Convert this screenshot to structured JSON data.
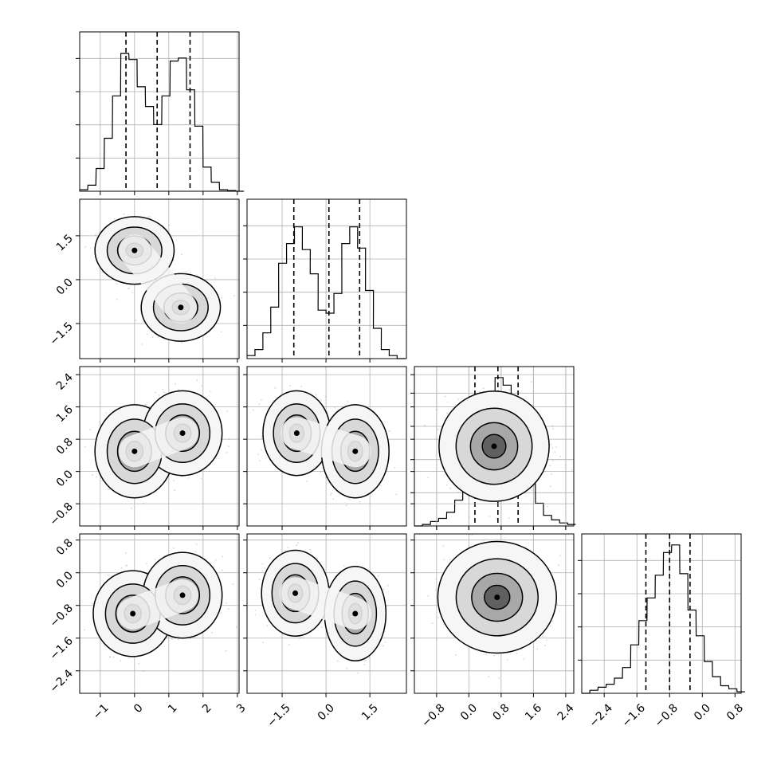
{
  "chart_data": {
    "type": "corner",
    "title": "",
    "n_params": 4,
    "grid": true,
    "colors": {
      "hist": "#000000",
      "contour": "#000000",
      "grid": "#b0b0b0",
      "points": "#8a8a8a"
    },
    "quantile_levels": [
      0.16,
      0.5,
      0.84
    ],
    "params": [
      {
        "ticks": [
          -1,
          0,
          1,
          2,
          3
        ],
        "tick_labels": [
          "−1",
          "0",
          "1",
          "2",
          "3"
        ],
        "range": [
          -1.6,
          3.05
        ],
        "quantiles": [
          -0.25,
          0.66,
          1.62
        ],
        "hist_bins": [
          -1.6,
          -1.36,
          -1.12,
          -0.88,
          -0.64,
          -0.4,
          -0.16,
          0.08,
          0.32,
          0.56,
          0.8,
          1.04,
          1.28,
          1.52,
          1.76,
          2.0,
          2.24,
          2.48,
          2.72,
          2.96
        ],
        "hist_counts": [
          0.01,
          0.04,
          0.15,
          0.35,
          0.63,
          0.91,
          0.87,
          0.69,
          0.56,
          0.44,
          0.63,
          0.86,
          0.88,
          0.67,
          0.43,
          0.16,
          0.06,
          0.01,
          0.005,
          0.0
        ]
      },
      {
        "ticks": [
          -1.5,
          0.0,
          1.5
        ],
        "tick_labels": [
          "−1.5",
          "0.0",
          "1.5"
        ],
        "range": [
          -2.7,
          2.75
        ],
        "quantiles": [
          -1.1,
          0.1,
          1.15
        ],
        "hist_bins": [
          -2.7,
          -2.43,
          -2.16,
          -1.89,
          -1.62,
          -1.35,
          -1.08,
          -0.81,
          -0.54,
          -0.27,
          0.0,
          0.27,
          0.54,
          0.81,
          1.08,
          1.35,
          1.62,
          1.89,
          2.16,
          2.43
        ],
        "hist_counts": [
          0.02,
          0.06,
          0.17,
          0.34,
          0.63,
          0.76,
          0.87,
          0.72,
          0.56,
          0.32,
          0.3,
          0.43,
          0.76,
          0.87,
          0.73,
          0.45,
          0.2,
          0.06,
          0.02,
          0.0
        ]
      },
      {
        "ticks": [
          -0.8,
          0.0,
          0.8,
          1.6,
          2.4
        ],
        "tick_labels": [
          "−0.8",
          "0.0",
          "0.8",
          "1.6",
          "2.4"
        ],
        "range": [
          -1.35,
          2.6
        ],
        "quantiles": [
          0.15,
          0.72,
          1.22
        ],
        "hist_bins": [
          -1.35,
          -1.15,
          -0.95,
          -0.75,
          -0.55,
          -0.35,
          -0.15,
          0.05,
          0.25,
          0.45,
          0.65,
          0.85,
          1.05,
          1.25,
          1.45,
          1.65,
          1.85,
          2.05,
          2.25,
          2.45
        ],
        "hist_counts": [
          0.0,
          0.01,
          0.03,
          0.05,
          0.09,
          0.17,
          0.26,
          0.42,
          0.66,
          0.82,
          0.98,
          0.93,
          0.69,
          0.51,
          0.28,
          0.15,
          0.07,
          0.04,
          0.02,
          0.01
        ]
      },
      {
        "ticks": [
          -2.4,
          -1.6,
          -0.8,
          0.0,
          0.8
        ],
        "tick_labels": [
          "−2.4",
          "−1.6",
          "−0.8",
          "0.0",
          "0.8"
        ],
        "range": [
          -2.95,
          0.95
        ],
        "quantiles": [
          -1.38,
          -0.8,
          -0.3
        ],
        "hist_bins": [
          -2.95,
          -2.75,
          -2.55,
          -2.35,
          -2.15,
          -1.95,
          -1.75,
          -1.55,
          -1.35,
          -1.15,
          -0.95,
          -0.75,
          -0.55,
          -0.35,
          -0.15,
          0.05,
          0.25,
          0.45,
          0.65,
          0.85
        ],
        "hist_counts": [
          0.0,
          0.02,
          0.04,
          0.06,
          0.1,
          0.17,
          0.32,
          0.48,
          0.63,
          0.78,
          0.93,
          0.98,
          0.79,
          0.55,
          0.38,
          0.21,
          0.11,
          0.05,
          0.03,
          0.01
        ]
      }
    ],
    "panels_2d": [
      {
        "row": 1,
        "col": 0,
        "modes": [
          [
            0.0,
            1.0
          ],
          [
            1.35,
            -0.95
          ]
        ],
        "spread": [
          [
            0.55,
            0.55
          ],
          [
            0.55,
            0.55
          ]
        ]
      },
      {
        "row": 2,
        "col": 0,
        "modes": [
          [
            0.0,
            0.5
          ],
          [
            1.4,
            0.95
          ]
        ],
        "spread": [
          [
            0.55,
            0.55
          ],
          [
            0.55,
            0.5
          ]
        ]
      },
      {
        "row": 2,
        "col": 1,
        "modes": [
          [
            -1.0,
            0.95
          ],
          [
            1.0,
            0.5
          ]
        ],
        "spread": [
          [
            0.55,
            0.5
          ],
          [
            0.55,
            0.55
          ]
        ]
      },
      {
        "row": 2,
        "col": 2,
        "modes": [],
        "spread": []
      },
      {
        "row": 3,
        "col": 0,
        "modes": [
          [
            -0.05,
            -1.0
          ],
          [
            1.4,
            -0.55
          ]
        ],
        "spread": [
          [
            0.55,
            0.5
          ],
          [
            0.55,
            0.5
          ]
        ]
      },
      {
        "row": 3,
        "col": 1,
        "modes": [
          [
            -1.05,
            -0.5
          ],
          [
            1.0,
            -1.0
          ]
        ],
        "spread": [
          [
            0.55,
            0.5
          ],
          [
            0.5,
            0.55
          ]
        ]
      },
      {
        "row": 3,
        "col": 2,
        "modes": [
          [
            0.7,
            -0.6
          ]
        ],
        "spread": [
          [
            0.7,
            0.65
          ]
        ]
      }
    ]
  }
}
